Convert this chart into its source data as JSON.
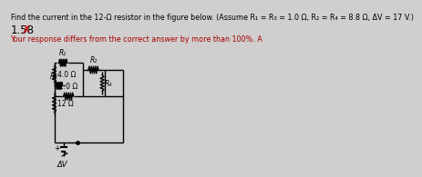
{
  "title_text": "Find the current in the 12-Ω resistor in the figure below. (Assume R₁ = R₃ = 1.0 Ω, R₂ = R₄ = 8.8 Ω, ΔV = 17 V.)",
  "answer_text": "1.58",
  "wrong_text": "Your response differs from the correct answer by more than 100%. A",
  "bg_color": "#d0cece",
  "title_fontsize": 5.8,
  "answer_fontsize": 8.5,
  "wrong_fontsize": 5.8,
  "circuit": {
    "R1": "R₁",
    "R2": "R₂",
    "R3": "R₃",
    "R4": "R₄",
    "res4ohm": "4.0 Ω",
    "res12ohm": "12 Ω",
    "res2ohm": "2.0 Ω",
    "battery": "ΔV"
  }
}
